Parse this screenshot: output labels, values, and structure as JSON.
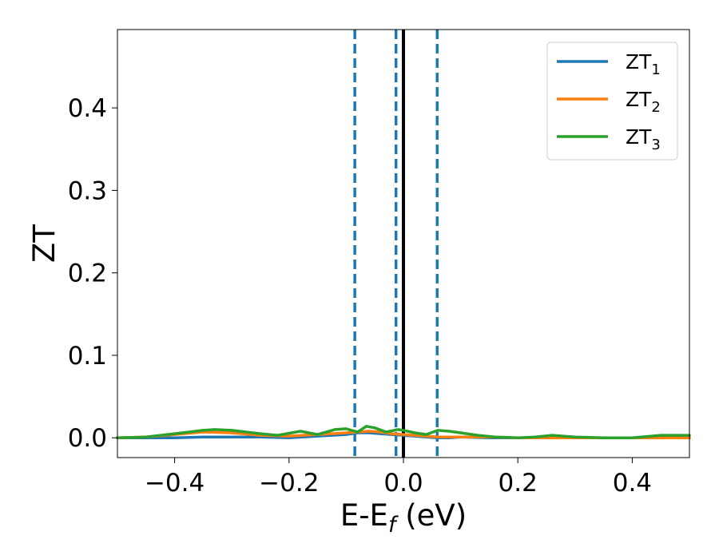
{
  "chart_data": {
    "type": "line",
    "xlabel": {
      "main": "E-E",
      "sub": "f",
      "suffix": " (eV)"
    },
    "ylabel": "ZT",
    "xlim": [
      -0.5,
      0.5
    ],
    "ylim": [
      -0.024,
      0.495
    ],
    "x_ticks": [
      -0.4,
      -0.2,
      0.0,
      0.2,
      0.4
    ],
    "x_tick_labels": [
      "−0.4",
      "−0.2",
      "0.0",
      "0.2",
      "0.4"
    ],
    "y_ticks": [
      0.0,
      0.1,
      0.2,
      0.3,
      0.4
    ],
    "y_tick_labels": [
      "0.0",
      "0.1",
      "0.2",
      "0.3",
      "0.4"
    ],
    "grid": false,
    "legend_position": "top-right",
    "vertical_lines": [
      {
        "x": -0.085,
        "style": "dashed",
        "color": "#1f77b4"
      },
      {
        "x": -0.013,
        "style": "dashed",
        "color": "#1f77b4"
      },
      {
        "x": 0.0,
        "style": "solid",
        "color": "#000000"
      },
      {
        "x": 0.059,
        "style": "dashed",
        "color": "#1f77b4"
      }
    ],
    "series": [
      {
        "name": "ZT",
        "sub": "1",
        "color": "#1f77b4",
        "x": [
          -0.5,
          -0.45,
          -0.4,
          -0.35,
          -0.3,
          -0.25,
          -0.2,
          -0.15,
          -0.1,
          -0.08,
          -0.06,
          -0.04,
          -0.02,
          0.0,
          0.02,
          0.04,
          0.06,
          0.08,
          0.1,
          0.15,
          0.2,
          0.25,
          0.3,
          0.35,
          0.4,
          0.45,
          0.5
        ],
        "values": [
          0.0,
          0.0,
          0.0,
          0.001,
          0.001,
          0.001,
          0.0,
          0.002,
          0.004,
          0.006,
          0.006,
          0.005,
          0.004,
          0.003,
          0.002,
          0.001,
          0.0,
          0.0,
          0.001,
          0.0,
          0.0,
          0.0,
          0.0,
          0.0,
          0.0,
          0.0,
          0.0
        ]
      },
      {
        "name": "ZT",
        "sub": "2",
        "color": "#ff7f0e",
        "x": [
          -0.5,
          -0.45,
          -0.4,
          -0.35,
          -0.3,
          -0.25,
          -0.2,
          -0.15,
          -0.1,
          -0.08,
          -0.06,
          -0.04,
          -0.02,
          0.0,
          0.02,
          0.04,
          0.06,
          0.08,
          0.1,
          0.15,
          0.2,
          0.25,
          0.3,
          0.35,
          0.4,
          0.45,
          0.5
        ],
        "values": [
          0.0,
          0.001,
          0.004,
          0.007,
          0.006,
          0.003,
          0.002,
          0.004,
          0.006,
          0.007,
          0.008,
          0.007,
          0.005,
          0.004,
          0.003,
          0.002,
          0.001,
          0.001,
          0.001,
          0.001,
          0.0,
          0.0,
          0.0,
          0.0,
          0.0,
          0.0,
          0.0
        ]
      },
      {
        "name": "ZT",
        "sub": "3",
        "color": "#2ca02c",
        "x": [
          -0.5,
          -0.45,
          -0.4,
          -0.35,
          -0.33,
          -0.3,
          -0.25,
          -0.22,
          -0.18,
          -0.15,
          -0.12,
          -0.1,
          -0.08,
          -0.065,
          -0.05,
          -0.03,
          -0.01,
          0.0,
          0.02,
          0.04,
          0.06,
          0.08,
          0.1,
          0.13,
          0.16,
          0.2,
          0.23,
          0.26,
          0.3,
          0.35,
          0.4,
          0.45,
          0.5
        ],
        "values": [
          0.0,
          0.001,
          0.005,
          0.009,
          0.01,
          0.009,
          0.005,
          0.003,
          0.008,
          0.004,
          0.01,
          0.011,
          0.007,
          0.014,
          0.012,
          0.007,
          0.01,
          0.009,
          0.006,
          0.004,
          0.009,
          0.008,
          0.006,
          0.003,
          0.001,
          0.0,
          0.001,
          0.003,
          0.001,
          0.0,
          0.0,
          0.003,
          0.003
        ]
      }
    ]
  }
}
